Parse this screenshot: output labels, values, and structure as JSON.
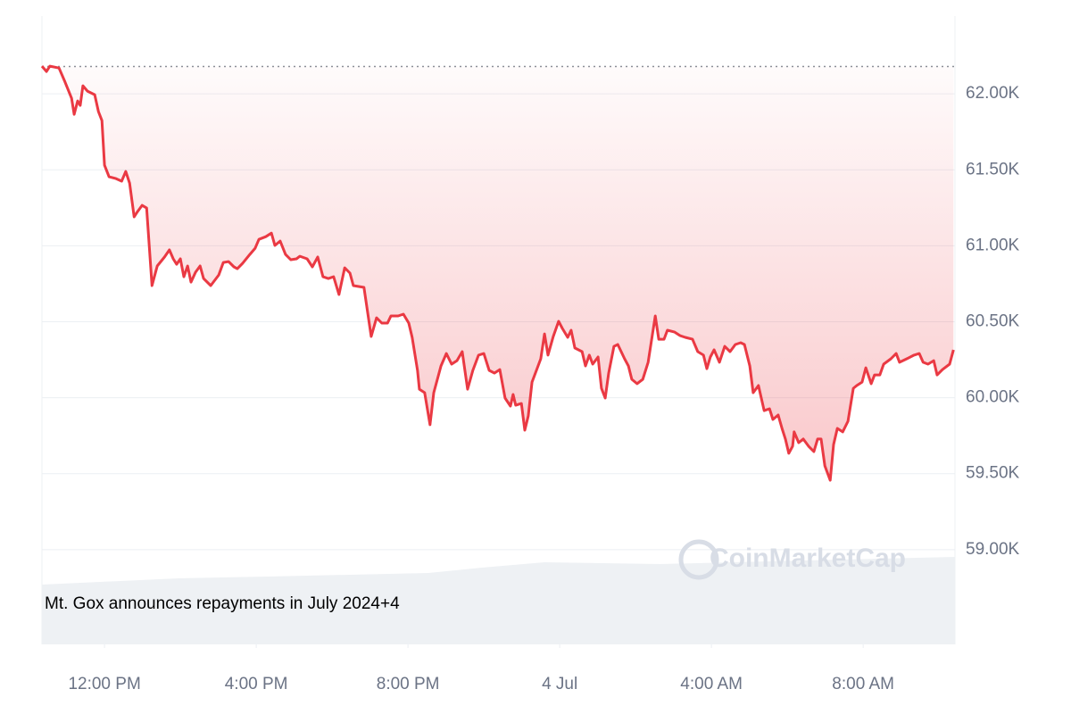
{
  "chart_data": {
    "type": "line",
    "annotation": "Mt. Gox announces repayments in July 2024+4",
    "watermark": "CoinMarketCap",
    "xlim": [
      10.35,
      34.42
    ],
    "xticks": [
      {
        "value": 12,
        "label": "12:00 PM"
      },
      {
        "value": 16,
        "label": "4:00 PM"
      },
      {
        "value": 20,
        "label": "8:00 PM"
      },
      {
        "value": 24,
        "label": "4 Jul"
      },
      {
        "value": 28,
        "label": "4:00 AM"
      },
      {
        "value": 32,
        "label": "8:00 AM"
      }
    ],
    "ylim": [
      58400,
      62500
    ],
    "yticks": [
      {
        "value": 59000,
        "label": "59.00K"
      },
      {
        "value": 59500,
        "label": "59.50K"
      },
      {
        "value": 60000,
        "label": "60.00K"
      },
      {
        "value": 60500,
        "label": "60.50K"
      },
      {
        "value": 61000,
        "label": "61.00K"
      },
      {
        "value": 61500,
        "label": "61.50K"
      },
      {
        "value": 62000,
        "label": "62.00K"
      }
    ],
    "grid": true,
    "baseline": 62180,
    "x": [
      10.35,
      10.47,
      10.56,
      10.8,
      10.94,
      11.13,
      11.2,
      11.29,
      11.36,
      11.43,
      11.55,
      11.74,
      11.84,
      11.93,
      12.0,
      12.12,
      12.3,
      12.45,
      12.56,
      12.66,
      12.78,
      12.87,
      12.99,
      13.11,
      13.25,
      13.39,
      13.58,
      13.71,
      13.81,
      13.9,
      14.0,
      14.09,
      14.19,
      14.28,
      14.4,
      14.52,
      14.61,
      14.8,
      15.01,
      15.13,
      15.27,
      15.41,
      15.5,
      15.64,
      15.83,
      15.97,
      16.07,
      16.25,
      16.4,
      16.49,
      16.63,
      16.77,
      16.91,
      17.06,
      17.15,
      17.34,
      17.48,
      17.62,
      17.76,
      17.9,
      18.04,
      18.18,
      18.33,
      18.47,
      18.56,
      18.84,
      19.03,
      19.17,
      19.31,
      19.46,
      19.55,
      19.74,
      19.88,
      20.02,
      20.11,
      20.25,
      20.3,
      20.44,
      20.58,
      20.68,
      20.87,
      21.01,
      21.15,
      21.29,
      21.43,
      21.57,
      21.71,
      21.86,
      22.0,
      22.14,
      22.28,
      22.42,
      22.56,
      22.7,
      22.77,
      22.84,
      22.99,
      23.08,
      23.17,
      23.27,
      23.41,
      23.5,
      23.6,
      23.69,
      23.83,
      23.97,
      24.07,
      24.21,
      24.3,
      24.4,
      24.59,
      24.68,
      24.78,
      24.87,
      25.01,
      25.1,
      25.2,
      25.29,
      25.43,
      25.53,
      25.71,
      25.81,
      25.9,
      26.04,
      26.19,
      26.33,
      26.52,
      26.61,
      26.75,
      26.84,
      27.03,
      27.17,
      27.31,
      27.5,
      27.64,
      27.79,
      27.88,
      27.97,
      28.07,
      28.21,
      28.35,
      28.49,
      28.63,
      28.77,
      28.87,
      29.01,
      29.1,
      29.24,
      29.39,
      29.53,
      29.62,
      29.76,
      29.86,
      29.95,
      30.04,
      30.14,
      30.18,
      30.3,
      30.42,
      30.56,
      30.7,
      30.8,
      30.89,
      30.99,
      31.13,
      31.22,
      31.32,
      31.46,
      31.6,
      31.74,
      31.83,
      31.97,
      32.07,
      32.21,
      32.3,
      32.44,
      32.54,
      32.73,
      32.87,
      32.96,
      33.15,
      33.34,
      33.48,
      33.58,
      33.71,
      33.86,
      33.95,
      34.09,
      34.28,
      34.38
    ],
    "series": [
      {
        "color": "#ea3943",
        "values": [
          62182,
          62147,
          62182,
          62170,
          62088,
          61971,
          61865,
          61953,
          61924,
          62053,
          62018,
          61994,
          61883,
          61824,
          61530,
          61454,
          61442,
          61425,
          61489,
          61413,
          61190,
          61225,
          61266,
          61248,
          60738,
          60867,
          60926,
          60973,
          60914,
          60878,
          60914,
          60796,
          60867,
          60761,
          60826,
          60867,
          60784,
          60738,
          60808,
          60890,
          60896,
          60861,
          60849,
          60884,
          60943,
          60984,
          61042,
          61060,
          61083,
          61002,
          61031,
          60943,
          60908,
          60914,
          60931,
          60914,
          60861,
          60926,
          60796,
          60784,
          60796,
          60679,
          60855,
          60820,
          60738,
          60726,
          60403,
          60526,
          60491,
          60491,
          60538,
          60538,
          60550,
          60491,
          60397,
          60180,
          60056,
          60033,
          59822,
          60033,
          60209,
          60291,
          60221,
          60244,
          60303,
          60056,
          60180,
          60280,
          60291,
          60180,
          60162,
          60185,
          59998,
          59945,
          60021,
          59951,
          59962,
          59786,
          59880,
          60103,
          60197,
          60256,
          60420,
          60280,
          60403,
          60503,
          60456,
          60397,
          60444,
          60327,
          60303,
          60209,
          60280,
          60221,
          60268,
          60062,
          59998,
          60162,
          60338,
          60350,
          60256,
          60209,
          60121,
          60092,
          60121,
          60233,
          60538,
          60385,
          60385,
          60444,
          60432,
          60409,
          60397,
          60385,
          60303,
          60280,
          60191,
          60268,
          60315,
          60233,
          60338,
          60303,
          60350,
          60362,
          60350,
          60209,
          60033,
          60080,
          59915,
          59927,
          59857,
          59886,
          59798,
          59728,
          59634,
          59681,
          59775,
          59704,
          59728,
          59681,
          59645,
          59728,
          59728,
          59551,
          59457,
          59692,
          59798,
          59775,
          59845,
          60062,
          60080,
          60103,
          60197,
          60092,
          60150,
          60150,
          60221,
          60256,
          60291,
          60233,
          60256,
          60280,
          60291,
          60233,
          60221,
          60244,
          60150,
          60185,
          60221,
          60315
        ]
      }
    ]
  }
}
